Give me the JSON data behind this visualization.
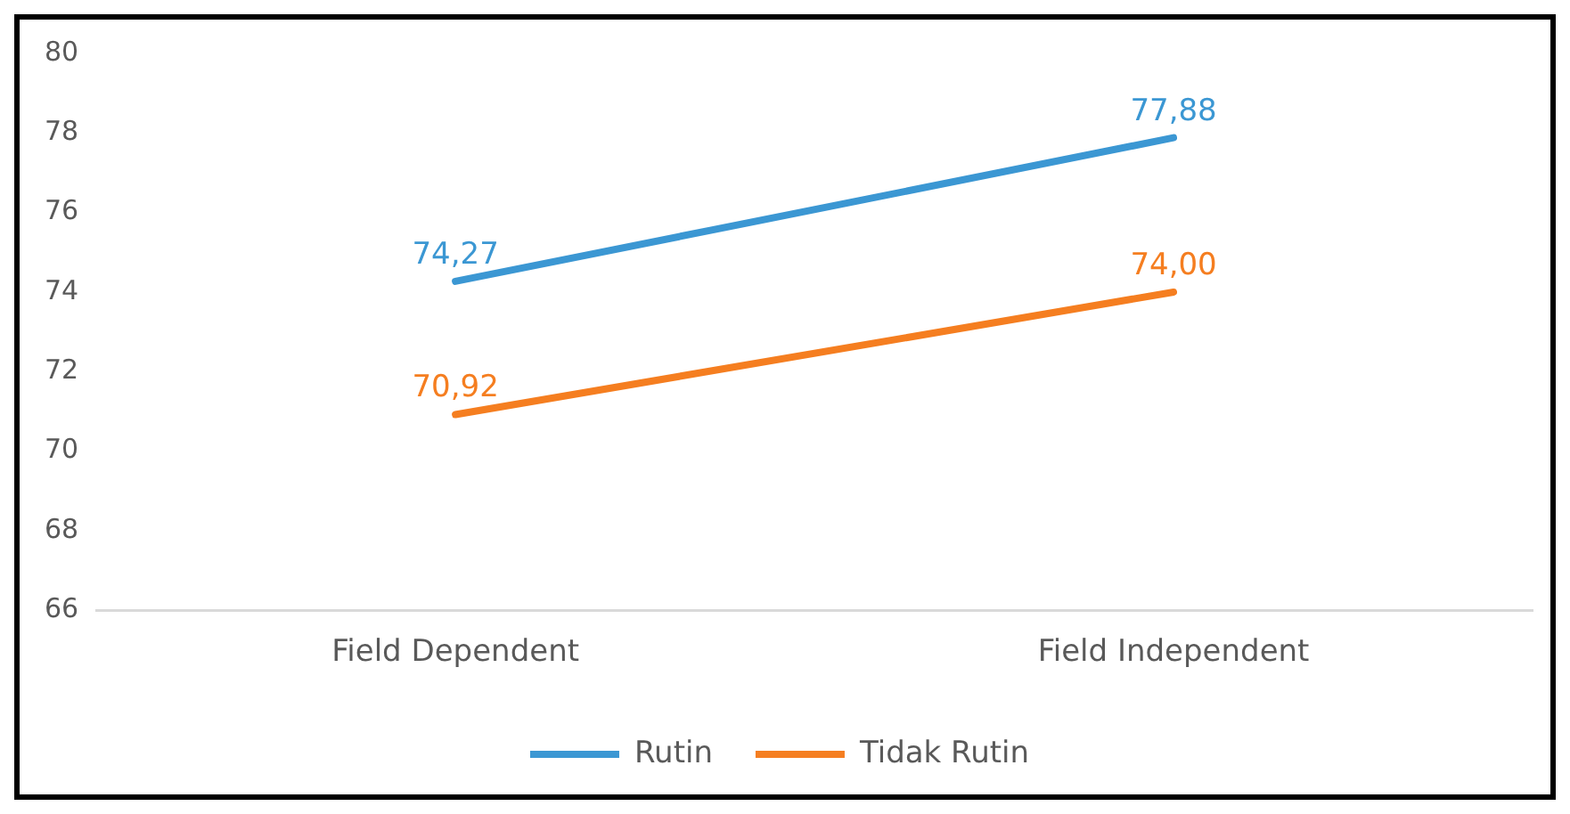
{
  "chart_data": {
    "type": "line",
    "categories": [
      "Field Dependent",
      "Field Independent"
    ],
    "series": [
      {
        "name": "Rutin",
        "color": "#3b97d3",
        "values": [
          74.27,
          77.88
        ],
        "value_labels": [
          "74,27",
          "77,88"
        ]
      },
      {
        "name": "Tidak Rutin",
        "color": "#f57e20",
        "values": [
          70.92,
          74.0
        ],
        "value_labels": [
          "70,92",
          "74,00"
        ]
      }
    ],
    "ylim": [
      66,
      80
    ],
    "yticks": [
      66,
      68,
      70,
      72,
      74,
      76,
      78,
      80
    ],
    "legend": "bottom",
    "marker": "none",
    "line_style": "solid"
  }
}
